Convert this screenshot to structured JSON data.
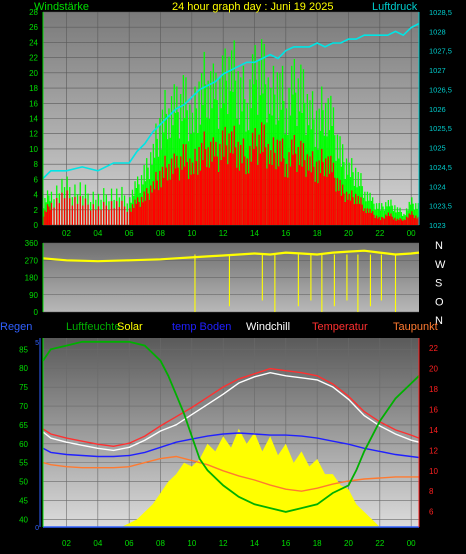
{
  "colors": {
    "wind_gust": "#00ff00",
    "wind_avg": "#ff0000",
    "pressure": "#00e5e5",
    "direction": "#ffff00",
    "rain": "#3060ff",
    "humidity": "#00b000",
    "solar": "#ffff00",
    "soil": "#2020ff",
    "windchill": "#ffffff",
    "temperature": "#ff3030",
    "dewpoint": "#ff7a30",
    "axis_cyan": "#00cccc",
    "axis_green": "#00dd00",
    "axis_red": "#ff2020",
    "axis_blue": "#3060ff"
  },
  "chart_data": [
    {
      "type": "line",
      "id": "wind_pressure",
      "title": "24 hour graph day : Juni 19 2025",
      "left_axis_label": "Windstärke",
      "right_axis_label": "Luftdruck",
      "x_ticks": [
        "02",
        "04",
        "06",
        "08",
        "10",
        "12",
        "14",
        "16",
        "18",
        "20",
        "22",
        "00"
      ],
      "x_range": [
        0.5,
        24.5
      ],
      "left_ticks": [
        "0",
        "2",
        "4",
        "6",
        "8",
        "10",
        "12",
        "14",
        "16",
        "18",
        "20",
        "22",
        "24",
        "26",
        "28"
      ],
      "left_range": [
        0,
        28
      ],
      "right_ticks": [
        "1023",
        "1023,5",
        "1024",
        "1024,5",
        "1025",
        "1025,5",
        "1026",
        "1026,5",
        "1027",
        "1027,5",
        "1028",
        "1028,5"
      ],
      "right_range": [
        1023,
        1028.5
      ],
      "series": [
        {
          "key": "gust",
          "color": "wind_gust",
          "x": [
            0.5,
            1,
            2,
            3,
            4,
            5,
            6,
            6.5,
            7,
            7.5,
            8,
            8.5,
            9,
            9.5,
            10,
            10.5,
            11,
            11.5,
            12,
            12.5,
            13,
            13.5,
            14,
            14.5,
            15,
            15.5,
            16,
            16.5,
            17,
            17.5,
            18,
            18.5,
            19,
            19.5,
            20,
            20.5,
            21,
            21.5,
            22,
            22.5,
            23,
            23.5,
            24,
            24.5
          ],
          "y": [
            4,
            6,
            7,
            6,
            5,
            6,
            5,
            7,
            9,
            13,
            18,
            21,
            20,
            22,
            18,
            24,
            26,
            22,
            25,
            28,
            24,
            22,
            26,
            27,
            22,
            25,
            21,
            24,
            23,
            20,
            18,
            22,
            17,
            12,
            10,
            9,
            6,
            4,
            3,
            4,
            3,
            2,
            4,
            3
          ]
        },
        {
          "key": "avg",
          "color": "wind_avg",
          "x": [
            0.5,
            1,
            2,
            3,
            4,
            5,
            6,
            6.5,
            7,
            7.5,
            8,
            8.5,
            9,
            9.5,
            10,
            10.5,
            11,
            11.5,
            12,
            12.5,
            13,
            13.5,
            14,
            14.5,
            15,
            15.5,
            16,
            16.5,
            17,
            17.5,
            18,
            18.5,
            19,
            19.5,
            20,
            20.5,
            21,
            21.5,
            22,
            22.5,
            23,
            23.5,
            24,
            24.5
          ],
          "y": [
            2,
            4,
            5,
            4,
            3,
            4,
            3,
            4,
            5,
            7,
            9,
            11,
            10,
            12,
            10,
            13,
            14,
            12,
            14,
            15,
            13,
            12,
            14,
            15,
            12,
            14,
            11,
            13,
            12,
            11,
            10,
            12,
            9,
            6,
            5,
            5,
            3,
            2,
            1,
            2,
            1,
            1,
            2,
            1
          ]
        },
        {
          "key": "pressure",
          "color": "pressure",
          "axis": "right",
          "x": [
            0.5,
            1,
            2,
            3,
            4,
            5,
            6,
            6.5,
            7,
            7.5,
            8,
            8.5,
            9,
            9.5,
            10,
            10.5,
            11,
            11.5,
            12,
            12.5,
            13,
            13.5,
            14,
            14.5,
            15,
            15.5,
            16,
            16.5,
            17,
            17.5,
            18,
            18.5,
            19,
            19.5,
            20,
            20.5,
            21,
            21.5,
            22,
            22.5,
            23,
            23.5,
            24,
            24.5
          ],
          "y": [
            1024.2,
            1024.4,
            1024.4,
            1024.5,
            1024.4,
            1024.6,
            1024.6,
            1024.9,
            1025.1,
            1025.4,
            1025.6,
            1025.8,
            1026.0,
            1026.1,
            1026.3,
            1026.5,
            1026.6,
            1026.7,
            1026.9,
            1027.0,
            1027.1,
            1027.2,
            1027.2,
            1027.3,
            1027.4,
            1027.3,
            1027.5,
            1027.6,
            1027.6,
            1027.6,
            1027.7,
            1027.6,
            1027.7,
            1027.7,
            1027.8,
            1027.8,
            1027.9,
            1027.9,
            1027.9,
            1027.9,
            1028.0,
            1027.9,
            1028.1,
            1028.2
          ]
        }
      ]
    },
    {
      "type": "scatter",
      "id": "wind_direction",
      "left_ticks": [
        "0",
        "90",
        "180",
        "270",
        "360"
      ],
      "left_range": [
        0,
        360
      ],
      "right_labels": [
        "N",
        "W",
        "S",
        "O",
        "N"
      ],
      "x_range": [
        0.5,
        24.5
      ],
      "series": [
        {
          "key": "direction",
          "color": "direction",
          "x": [
            0.5,
            2,
            4,
            6,
            8,
            9,
            10,
            11,
            12,
            13,
            14,
            15,
            16,
            17,
            18,
            19,
            20,
            21,
            22,
            23,
            24,
            24.5
          ],
          "y": [
            280,
            270,
            265,
            270,
            275,
            280,
            285,
            290,
            295,
            300,
            305,
            300,
            310,
            305,
            300,
            310,
            315,
            320,
            310,
            300,
            305,
            310
          ]
        }
      ]
    },
    {
      "type": "line",
      "id": "climate",
      "legend": [
        "Regen",
        "Luftfeuchte",
        "Solar",
        "temp Boden",
        "Windchill",
        "Temperatur",
        "Taupunkt"
      ],
      "x_ticks": [
        "02",
        "04",
        "06",
        "08",
        "10",
        "12",
        "14",
        "16",
        "18",
        "20",
        "22",
        "00"
      ],
      "x_range": [
        0.5,
        24.5
      ],
      "left_ticks": [
        "40",
        "45",
        "50",
        "55",
        "60",
        "65",
        "70",
        "75",
        "80",
        "85"
      ],
      "left_range": [
        38,
        88
      ],
      "rain_ticks": [
        "0",
        "5"
      ],
      "right_ticks": [
        "6",
        "8",
        "10",
        "12",
        "14",
        "16",
        "18",
        "20",
        "22"
      ],
      "right_range": [
        4.5,
        23
      ],
      "series": [
        {
          "key": "humidity",
          "color": "humidity",
          "axis": "left",
          "x": [
            0.5,
            1,
            2,
            3,
            4,
            5,
            6,
            7,
            8,
            8.5,
            9,
            9.5,
            10,
            10.5,
            11,
            12,
            13,
            14,
            15,
            16,
            17,
            18,
            19,
            20,
            20.5,
            21,
            22,
            23,
            24,
            24.5
          ],
          "y": [
            82,
            85,
            86,
            87,
            87,
            87,
            87,
            86,
            82,
            78,
            73,
            68,
            62,
            56,
            53,
            49,
            46,
            44,
            43,
            42,
            43,
            44,
            47,
            49,
            53,
            58,
            66,
            72,
            76,
            78
          ]
        },
        {
          "key": "solar",
          "color": "solar",
          "axis": "left",
          "x": [
            0.5,
            5.5,
            6,
            6.5,
            7,
            7.5,
            8,
            8.5,
            9,
            9.5,
            10,
            10.5,
            11,
            11.5,
            12,
            12.5,
            13,
            13.5,
            14,
            14.5,
            15,
            15.5,
            16,
            16.5,
            17,
            17.5,
            18,
            18.5,
            19,
            19.5,
            20,
            20.5,
            21,
            21.5,
            22,
            24.5
          ],
          "y": [
            38,
            38,
            39,
            40,
            42,
            44,
            47,
            50,
            52,
            55,
            54,
            56,
            60,
            58,
            62,
            59,
            64,
            60,
            63,
            58,
            62,
            57,
            60,
            55,
            58,
            54,
            56,
            52,
            52,
            49,
            48,
            44,
            42,
            40,
            38,
            38
          ]
        },
        {
          "key": "soil",
          "color": "soil",
          "axis": "right",
          "x": [
            0.5,
            1,
            2,
            3,
            4,
            5,
            6,
            7,
            8,
            9,
            10,
            11,
            12,
            13,
            14,
            15,
            16,
            17,
            18,
            19,
            20,
            21,
            22,
            23,
            24,
            24.5
          ],
          "y": [
            12.2,
            11.8,
            11.6,
            11.5,
            11.4,
            11.4,
            11.5,
            11.8,
            12.3,
            12.8,
            13.1,
            13.4,
            13.6,
            13.7,
            13.6,
            13.5,
            13.5,
            13.4,
            13.2,
            12.9,
            12.6,
            12.2,
            11.9,
            11.6,
            11.4,
            11.3
          ]
        },
        {
          "key": "windchill",
          "color": "windchill",
          "axis": "right",
          "x": [
            0.5,
            1,
            2,
            3,
            4,
            5,
            6,
            7,
            8,
            9,
            10,
            11,
            12,
            13,
            14,
            15,
            16,
            17,
            18,
            19,
            20,
            21,
            22,
            23,
            24,
            24.5
          ],
          "y": [
            13.8,
            13.2,
            12.8,
            12.5,
            12.2,
            12.0,
            12.3,
            13.0,
            13.9,
            14.5,
            15.5,
            16.5,
            17.5,
            18.6,
            19.2,
            19.6,
            19.3,
            19.1,
            18.9,
            18.2,
            17.0,
            15.4,
            14.4,
            13.6,
            13.0,
            12.8
          ]
        },
        {
          "key": "temperature",
          "color": "temperature",
          "axis": "right",
          "x": [
            0.5,
            1,
            2,
            3,
            4,
            5,
            6,
            7,
            8,
            9,
            10,
            11,
            12,
            13,
            14,
            15,
            16,
            17,
            18,
            19,
            20,
            21,
            22,
            23,
            24,
            24.5
          ],
          "y": [
            14.1,
            13.6,
            13.2,
            12.9,
            12.6,
            12.4,
            12.7,
            13.4,
            14.4,
            15.3,
            16.2,
            17.2,
            18.2,
            19.0,
            19.5,
            20.0,
            19.8,
            19.6,
            19.3,
            18.5,
            17.3,
            15.8,
            14.8,
            14.0,
            13.5,
            13.2
          ]
        },
        {
          "key": "dewpoint",
          "color": "dewpoint",
          "axis": "right",
          "x": [
            0.5,
            1,
            2,
            3,
            4,
            5,
            6,
            7,
            8,
            9,
            10,
            11,
            12,
            13,
            14,
            15,
            16,
            17,
            18,
            19,
            20,
            21,
            22,
            23,
            24,
            24.5
          ],
          "y": [
            10.8,
            10.6,
            10.4,
            10.3,
            10.3,
            10.3,
            10.4,
            10.8,
            11.2,
            11.4,
            11.0,
            10.6,
            10.0,
            9.5,
            9.1,
            8.6,
            8.2,
            8.0,
            8.3,
            8.7,
            9.0,
            9.2,
            9.3,
            9.4,
            9.4,
            9.4
          ]
        },
        {
          "key": "rain",
          "color": "rain",
          "axis": "left",
          "x": [
            0.5,
            24.5
          ],
          "y": [
            38,
            38
          ]
        }
      ]
    }
  ]
}
